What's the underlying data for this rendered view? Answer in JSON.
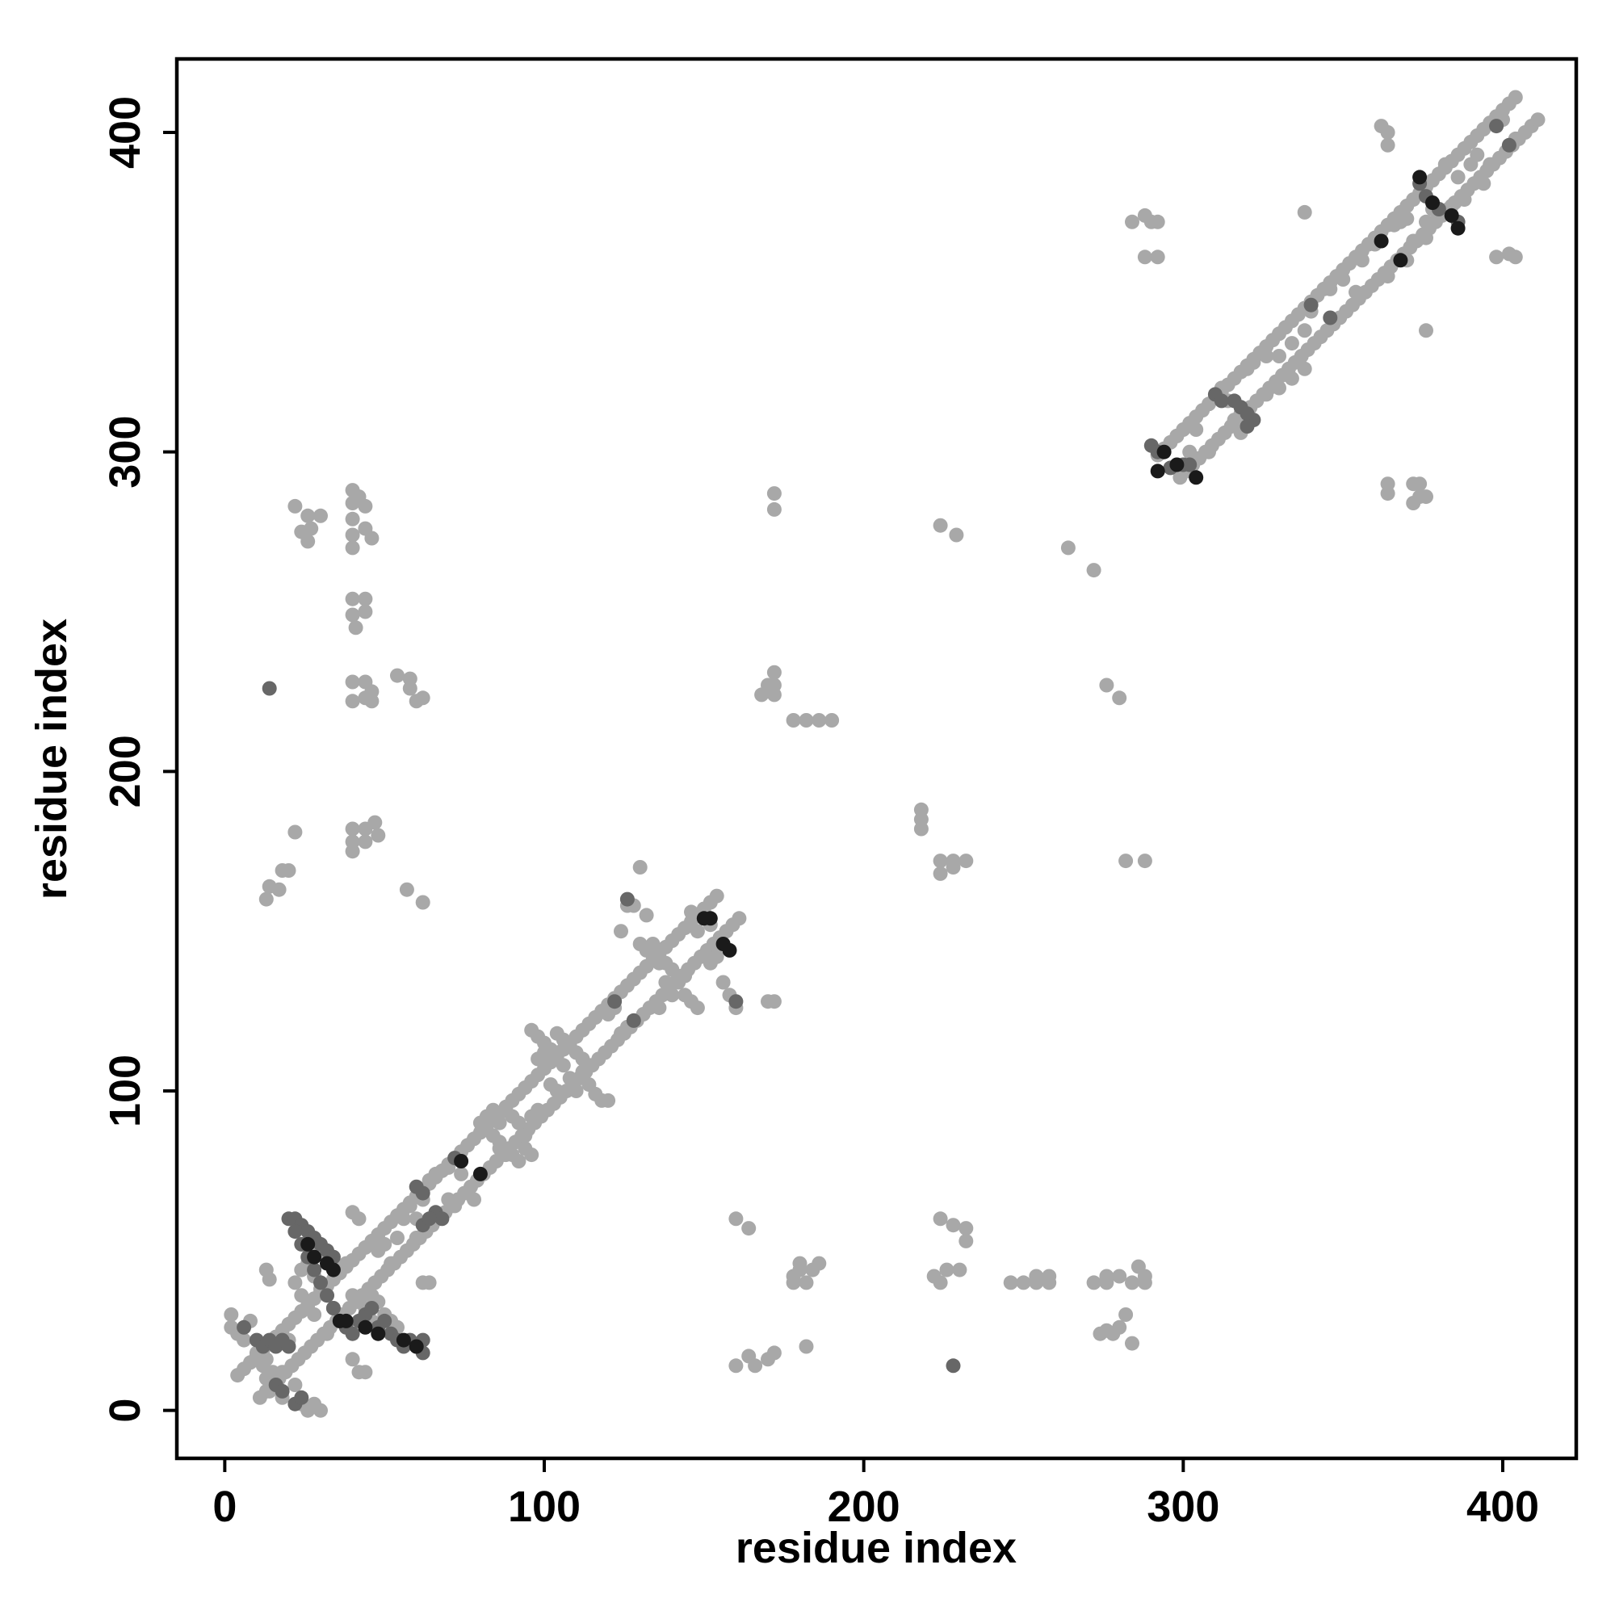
{
  "chart_data": {
    "type": "scatter",
    "title": "",
    "xlabel": "residue index",
    "ylabel": "residue index",
    "xlim": [
      -15,
      423
    ],
    "ylim": [
      -15,
      423
    ],
    "xticks": [
      0,
      100,
      200,
      300,
      400
    ],
    "yticks": [
      0,
      100,
      200,
      300,
      400
    ],
    "tick_labels": {
      "x": [
        "0",
        "100",
        "200",
        "300",
        "400"
      ],
      "y": [
        "0",
        "100",
        "200",
        "300",
        "400"
      ]
    },
    "grid": false,
    "legend": "none",
    "colors": {
      "light": "#a8a8a8",
      "medium": "#676767",
      "dark": "#1a1a1a",
      "axis": "#000000"
    },
    "diagonal_bands": [
      {
        "x0": 4,
        "x1": 155,
        "offset": 7,
        "step": 2,
        "color": "light"
      },
      {
        "x0": 292,
        "x1": 405,
        "offset": 7,
        "step": 2,
        "color": "light"
      }
    ],
    "points_light": [
      [
        2,
        30
      ],
      [
        2,
        26
      ],
      [
        4,
        24
      ],
      [
        6,
        22
      ],
      [
        8,
        28
      ],
      [
        10,
        18
      ],
      [
        12,
        14
      ],
      [
        13,
        10
      ],
      [
        14,
        6
      ],
      [
        16,
        8
      ],
      [
        18,
        12
      ],
      [
        18,
        4
      ],
      [
        20,
        22
      ],
      [
        21,
        14
      ],
      [
        22,
        8
      ],
      [
        24,
        2
      ],
      [
        26,
        0
      ],
      [
        28,
        2
      ],
      [
        30,
        0
      ],
      [
        13,
        44
      ],
      [
        14,
        41
      ],
      [
        15,
        12
      ],
      [
        13,
        16
      ],
      [
        13,
        160
      ],
      [
        14,
        164
      ],
      [
        17,
        163
      ],
      [
        18,
        169
      ],
      [
        20,
        169
      ],
      [
        22,
        181
      ],
      [
        22,
        283
      ],
      [
        24,
        275
      ],
      [
        26,
        272
      ],
      [
        26,
        280
      ],
      [
        27,
        276
      ],
      [
        30,
        280
      ],
      [
        40,
        288
      ],
      [
        40,
        284
      ],
      [
        40,
        279
      ],
      [
        40,
        274
      ],
      [
        40,
        270
      ],
      [
        42,
        286
      ],
      [
        44,
        283
      ],
      [
        44,
        276
      ],
      [
        46,
        273
      ],
      [
        40,
        254
      ],
      [
        40,
        249
      ],
      [
        41,
        245
      ],
      [
        44,
        254
      ],
      [
        44,
        250
      ],
      [
        40,
        228
      ],
      [
        40,
        222
      ],
      [
        44,
        223
      ],
      [
        44,
        228
      ],
      [
        46,
        222
      ],
      [
        46,
        225
      ],
      [
        40,
        182
      ],
      [
        40,
        178
      ],
      [
        40,
        175
      ],
      [
        44,
        178
      ],
      [
        44,
        182
      ],
      [
        47,
        184
      ],
      [
        48,
        180
      ],
      [
        54,
        230
      ],
      [
        58,
        229
      ],
      [
        58,
        226
      ],
      [
        60,
        222
      ],
      [
        62,
        223
      ],
      [
        57,
        163
      ],
      [
        62,
        159
      ],
      [
        160,
        60
      ],
      [
        164,
        57
      ],
      [
        168,
        224
      ],
      [
        172,
        224
      ],
      [
        172,
        231
      ],
      [
        172,
        227
      ],
      [
        170,
        227
      ],
      [
        172,
        287
      ],
      [
        172,
        282
      ],
      [
        178,
        216
      ],
      [
        182,
        216
      ],
      [
        186,
        216
      ],
      [
        190,
        216
      ],
      [
        218,
        188
      ],
      [
        218,
        185
      ],
      [
        218,
        182
      ],
      [
        224,
        172
      ],
      [
        224,
        168
      ],
      [
        228,
        172
      ],
      [
        228,
        170
      ],
      [
        232,
        172
      ],
      [
        224,
        277
      ],
      [
        229,
        274
      ],
      [
        170,
        128
      ],
      [
        172,
        128
      ],
      [
        182,
        20
      ],
      [
        160,
        14
      ],
      [
        164,
        17
      ],
      [
        166,
        14
      ],
      [
        170,
        16
      ],
      [
        172,
        18
      ],
      [
        178,
        40
      ],
      [
        182,
        40
      ],
      [
        180,
        44
      ],
      [
        184,
        44
      ],
      [
        186,
        46
      ],
      [
        180,
        46
      ],
      [
        178,
        42
      ],
      [
        222,
        42
      ],
      [
        224,
        40
      ],
      [
        226,
        44
      ],
      [
        230,
        44
      ],
      [
        224,
        60
      ],
      [
        228,
        58
      ],
      [
        232,
        57
      ],
      [
        232,
        53
      ],
      [
        246,
        40
      ],
      [
        250,
        40
      ],
      [
        254,
        40
      ],
      [
        254,
        42
      ],
      [
        258,
        42
      ],
      [
        258,
        40
      ],
      [
        272,
        40
      ],
      [
        276,
        40
      ],
      [
        276,
        42
      ],
      [
        280,
        42
      ],
      [
        284,
        40
      ],
      [
        288,
        42
      ],
      [
        288,
        40
      ],
      [
        276,
        25
      ],
      [
        278,
        24
      ],
      [
        280,
        26
      ],
      [
        282,
        30
      ],
      [
        284,
        21
      ],
      [
        274,
        24
      ],
      [
        286,
        45
      ],
      [
        264,
        270
      ],
      [
        272,
        263
      ],
      [
        276,
        227
      ],
      [
        280,
        223
      ],
      [
        282,
        172
      ],
      [
        288,
        172
      ],
      [
        284,
        372
      ],
      [
        288,
        374
      ],
      [
        290,
        372
      ],
      [
        292,
        372
      ],
      [
        288,
        361
      ],
      [
        292,
        361
      ],
      [
        338,
        375
      ],
      [
        362,
        402
      ],
      [
        364,
        400
      ],
      [
        364,
        396
      ],
      [
        366,
        371
      ],
      [
        368,
        372
      ],
      [
        370,
        373
      ],
      [
        364,
        290
      ],
      [
        364,
        287
      ],
      [
        372,
        290
      ],
      [
        374,
        290
      ],
      [
        374,
        286
      ],
      [
        376,
        286
      ],
      [
        372,
        284
      ],
      [
        376,
        338
      ],
      [
        398,
        361
      ],
      [
        400,
        404
      ],
      [
        402,
        362
      ],
      [
        404,
        361
      ],
      [
        404,
        398
      ],
      [
        364,
        355
      ],
      [
        340,
        344
      ],
      [
        346,
        351
      ],
      [
        350,
        354
      ],
      [
        354,
        350
      ],
      [
        356,
        360
      ],
      [
        360,
        365
      ],
      [
        322,
        328
      ],
      [
        326,
        330
      ],
      [
        330,
        330
      ],
      [
        334,
        334
      ],
      [
        338,
        338
      ],
      [
        326,
        318
      ],
      [
        330,
        320
      ],
      [
        334,
        323
      ],
      [
        338,
        326
      ],
      [
        312,
        320
      ],
      [
        314,
        316
      ],
      [
        316,
        310
      ],
      [
        318,
        306
      ],
      [
        318,
        312
      ],
      [
        320,
        326
      ],
      [
        298,
        305
      ],
      [
        302,
        300
      ],
      [
        304,
        307
      ],
      [
        308,
        300
      ],
      [
        382,
        390
      ],
      [
        386,
        386
      ],
      [
        390,
        390
      ],
      [
        392,
        393
      ],
      [
        380,
        374
      ],
      [
        384,
        377
      ],
      [
        388,
        379
      ],
      [
        394,
        384
      ],
      [
        396,
        390
      ],
      [
        370,
        360
      ],
      [
        372,
        366
      ],
      [
        376,
        367
      ],
      [
        376,
        372
      ],
      [
        378,
        376
      ],
      [
        96,
        119
      ],
      [
        98,
        117
      ],
      [
        100,
        115
      ],
      [
        102,
        113
      ],
      [
        104,
        118
      ],
      [
        106,
        116
      ],
      [
        108,
        114
      ],
      [
        110,
        112
      ],
      [
        112,
        110
      ],
      [
        98,
        110
      ],
      [
        100,
        112
      ],
      [
        104,
        112
      ],
      [
        106,
        108
      ],
      [
        102,
        102
      ],
      [
        104,
        100
      ],
      [
        108,
        104
      ],
      [
        110,
        100
      ],
      [
        112,
        106
      ],
      [
        114,
        108
      ],
      [
        114,
        102
      ],
      [
        116,
        99
      ],
      [
        118,
        97
      ],
      [
        120,
        97
      ],
      [
        96,
        92
      ],
      [
        98,
        94
      ],
      [
        80,
        90
      ],
      [
        82,
        92
      ],
      [
        84,
        94
      ],
      [
        86,
        90
      ],
      [
        88,
        94
      ],
      [
        90,
        92
      ],
      [
        92,
        90
      ],
      [
        84,
        86
      ],
      [
        86,
        84
      ],
      [
        86,
        82
      ],
      [
        88,
        80
      ],
      [
        90,
        80
      ],
      [
        94,
        82
      ],
      [
        94,
        86
      ],
      [
        96,
        80
      ],
      [
        92,
        78
      ],
      [
        70,
        66
      ],
      [
        72,
        64
      ],
      [
        74,
        74
      ],
      [
        76,
        68
      ],
      [
        78,
        66
      ],
      [
        64,
        72
      ],
      [
        66,
        74
      ],
      [
        70,
        76
      ],
      [
        52,
        46
      ],
      [
        56,
        60
      ],
      [
        58,
        64
      ],
      [
        60,
        54
      ],
      [
        60,
        60
      ],
      [
        62,
        66
      ],
      [
        62,
        40
      ],
      [
        64,
        40
      ],
      [
        40,
        62
      ],
      [
        42,
        60
      ],
      [
        40,
        36
      ],
      [
        42,
        34
      ],
      [
        44,
        32
      ],
      [
        46,
        28
      ],
      [
        46,
        36
      ],
      [
        48,
        34
      ],
      [
        50,
        30
      ],
      [
        52,
        28
      ],
      [
        54,
        26
      ],
      [
        48,
        50
      ],
      [
        50,
        52
      ],
      [
        54,
        54
      ],
      [
        40,
        16
      ],
      [
        42,
        12
      ],
      [
        44,
        12
      ],
      [
        30,
        50
      ],
      [
        32,
        48
      ],
      [
        34,
        46
      ],
      [
        36,
        44
      ],
      [
        38,
        46
      ],
      [
        28,
        42
      ],
      [
        30,
        38
      ],
      [
        32,
        36
      ],
      [
        34,
        32
      ],
      [
        36,
        30
      ],
      [
        28,
        30
      ],
      [
        32,
        24
      ],
      [
        24,
        36
      ],
      [
        26,
        32
      ],
      [
        22,
        40
      ],
      [
        24,
        44
      ],
      [
        26,
        46
      ],
      [
        28,
        48
      ],
      [
        130,
        146
      ],
      [
        132,
        144
      ],
      [
        134,
        146
      ],
      [
        136,
        142
      ],
      [
        138,
        140
      ],
      [
        140,
        138
      ],
      [
        142,
        134
      ],
      [
        144,
        130
      ],
      [
        146,
        128
      ],
      [
        148,
        126
      ],
      [
        136,
        126
      ],
      [
        138,
        134
      ],
      [
        140,
        130
      ],
      [
        144,
        136
      ],
      [
        130,
        170
      ],
      [
        126,
        158
      ],
      [
        128,
        158
      ],
      [
        124,
        150
      ],
      [
        132,
        155
      ],
      [
        124,
        118
      ],
      [
        126,
        120
      ],
      [
        128,
        122
      ],
      [
        120,
        124
      ],
      [
        122,
        126
      ],
      [
        152,
        152
      ],
      [
        156,
        146
      ],
      [
        156,
        134
      ],
      [
        160,
        126
      ],
      [
        158,
        130
      ],
      [
        152,
        140
      ],
      [
        154,
        142
      ],
      [
        146,
        156
      ],
      [
        148,
        150
      ],
      [
        136,
        140
      ]
    ],
    "points_medium": [
      [
        14,
        226
      ],
      [
        6,
        26
      ],
      [
        10,
        22
      ],
      [
        12,
        20
      ],
      [
        14,
        22
      ],
      [
        16,
        20
      ],
      [
        18,
        22
      ],
      [
        20,
        20
      ],
      [
        16,
        8
      ],
      [
        18,
        6
      ],
      [
        22,
        2
      ],
      [
        24,
        4
      ],
      [
        20,
        60
      ],
      [
        22,
        60
      ],
      [
        24,
        58
      ],
      [
        26,
        56
      ],
      [
        28,
        54
      ],
      [
        30,
        52
      ],
      [
        32,
        50
      ],
      [
        34,
        48
      ],
      [
        22,
        56
      ],
      [
        24,
        52
      ],
      [
        26,
        48
      ],
      [
        28,
        44
      ],
      [
        30,
        40
      ],
      [
        32,
        36
      ],
      [
        34,
        32
      ],
      [
        36,
        28
      ],
      [
        38,
        26
      ],
      [
        40,
        24
      ],
      [
        42,
        28
      ],
      [
        44,
        30
      ],
      [
        46,
        32
      ],
      [
        48,
        26
      ],
      [
        50,
        28
      ],
      [
        52,
        24
      ],
      [
        54,
        22
      ],
      [
        56,
        20
      ],
      [
        58,
        22
      ],
      [
        60,
        20
      ],
      [
        62,
        18
      ],
      [
        62,
        22
      ],
      [
        60,
        70
      ],
      [
        62,
        68
      ],
      [
        66,
        62
      ],
      [
        68,
        60
      ],
      [
        62,
        58
      ],
      [
        64,
        60
      ],
      [
        72,
        79
      ],
      [
        122,
        128
      ],
      [
        128,
        122
      ],
      [
        126,
        160
      ],
      [
        160,
        128
      ],
      [
        228,
        14
      ],
      [
        290,
        302
      ],
      [
        292,
        300
      ],
      [
        296,
        295
      ],
      [
        300,
        296
      ],
      [
        302,
        296
      ],
      [
        310,
        318
      ],
      [
        312,
        316
      ],
      [
        316,
        316
      ],
      [
        318,
        314
      ],
      [
        320,
        312
      ],
      [
        322,
        310
      ],
      [
        320,
        308
      ],
      [
        340,
        346
      ],
      [
        346,
        342
      ],
      [
        374,
        384
      ],
      [
        376,
        380
      ],
      [
        380,
        376
      ],
      [
        384,
        374
      ],
      [
        386,
        372
      ],
      [
        398,
        402
      ],
      [
        402,
        396
      ]
    ],
    "points_dark": [
      [
        26,
        52
      ],
      [
        28,
        48
      ],
      [
        32,
        46
      ],
      [
        34,
        44
      ],
      [
        36,
        28
      ],
      [
        38,
        28
      ],
      [
        44,
        26
      ],
      [
        48,
        24
      ],
      [
        56,
        22
      ],
      [
        60,
        20
      ],
      [
        74,
        78
      ],
      [
        80,
        74
      ],
      [
        150,
        154
      ],
      [
        152,
        154
      ],
      [
        156,
        146
      ],
      [
        158,
        144
      ],
      [
        292,
        294
      ],
      [
        294,
        300
      ],
      [
        298,
        296
      ],
      [
        304,
        292
      ],
      [
        362,
        366
      ],
      [
        368,
        360
      ],
      [
        374,
        386
      ],
      [
        378,
        378
      ],
      [
        384,
        374
      ],
      [
        386,
        370
      ]
    ]
  }
}
